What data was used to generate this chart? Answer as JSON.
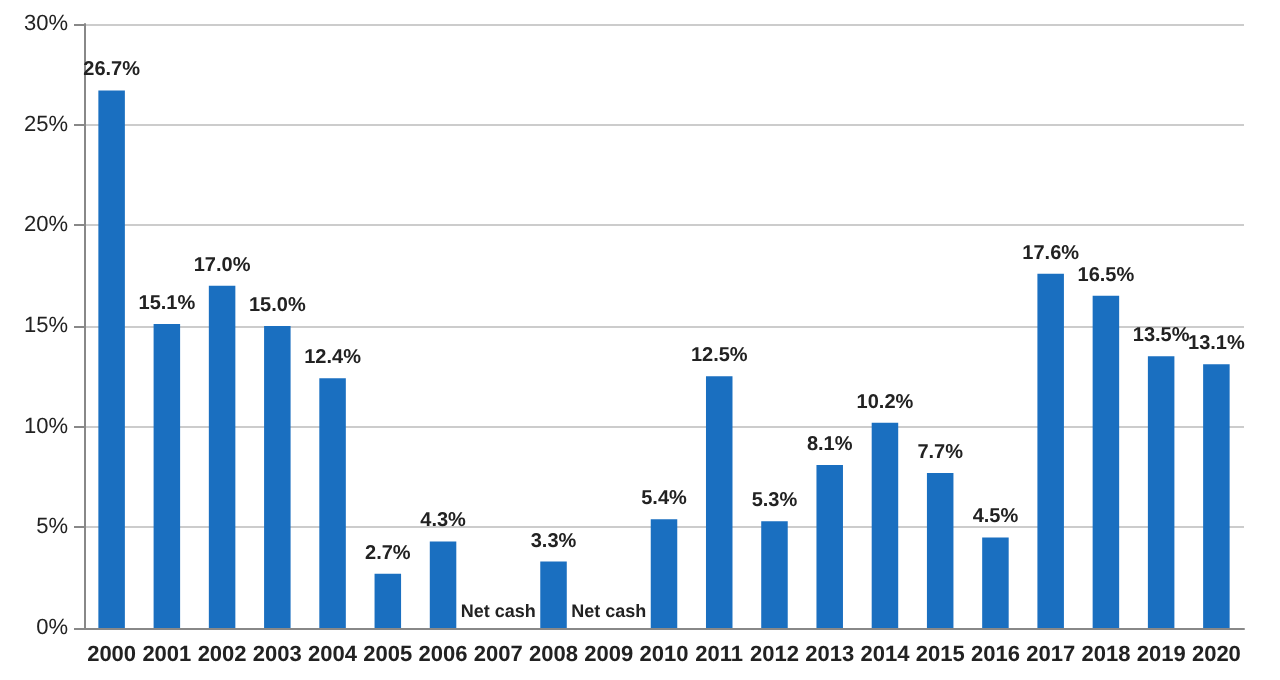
{
  "chart_data": {
    "type": "bar",
    "categories": [
      "2000",
      "2001",
      "2002",
      "2003",
      "2004",
      "2005",
      "2006",
      "2007",
      "2008",
      "2009",
      "2010",
      "2011",
      "2012",
      "2013",
      "2014",
      "2015",
      "2016",
      "2017",
      "2018",
      "2019",
      "2020"
    ],
    "values": [
      26.7,
      15.1,
      17.0,
      15.0,
      12.4,
      2.7,
      4.3,
      null,
      3.3,
      null,
      5.4,
      12.5,
      5.3,
      8.1,
      10.2,
      7.7,
      4.5,
      17.6,
      16.5,
      13.5,
      13.1
    ],
    "value_labels": [
      "26.7%",
      "15.1%",
      "17.0%",
      "15.0%",
      "12.4%",
      "2.7%",
      "4.3%",
      "Net cash",
      "3.3%",
      "Net cash",
      "5.4%",
      "12.5%",
      "5.3%",
      "8.1%",
      "10.2%",
      "7.7%",
      "4.5%",
      "17.6%",
      "16.5%",
      "13.5%",
      "13.1%"
    ],
    "color": "#1a6fc0",
    "ylim": [
      0,
      30
    ],
    "yticks": [
      {
        "value": 0,
        "label": "0%"
      },
      {
        "value": 5,
        "label": "5%"
      },
      {
        "value": 10,
        "label": "10%"
      },
      {
        "value": 15,
        "label": "15%"
      },
      {
        "value": 20,
        "label": "20%"
      },
      {
        "value": 25,
        "label": "25%"
      },
      {
        "value": 30,
        "label": "30%"
      }
    ],
    "grid": "y"
  }
}
